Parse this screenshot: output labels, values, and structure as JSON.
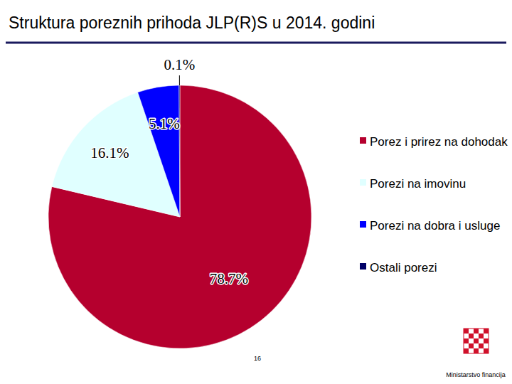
{
  "chart_data": {
    "type": "pie",
    "title": "Struktura poreznih prihoda JLP(R)S u 2014. godini",
    "categories": [
      "Porez i prirez na dohodak",
      "Porezi na imovinu",
      "Porezi na dobra i usluge",
      "Ostali porezi"
    ],
    "values": [
      78.7,
      16.1,
      5.1,
      0.1
    ],
    "value_labels": [
      "78.7%",
      "16.1%",
      "5.1%",
      "0.1%"
    ],
    "colors": [
      "#b5002e",
      "#e0ffff",
      "#0000ff",
      "#000066"
    ],
    "data_labels": true,
    "legend": "right",
    "annotations": [
      "16",
      "Ministarstvo financija"
    ]
  }
}
